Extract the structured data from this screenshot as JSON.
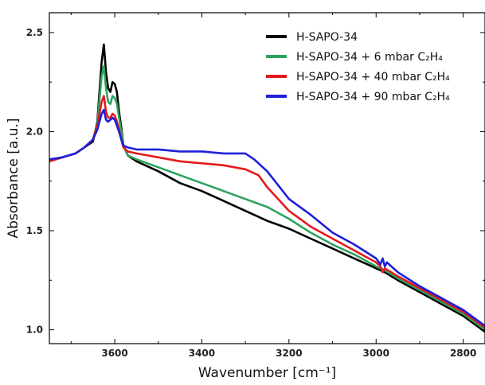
{
  "chart_data": {
    "type": "line",
    "title": "",
    "xlabel": "Wavenumber [cm⁻¹]",
    "ylabel": "Absorbance [a.u.]",
    "xlim": [
      3750,
      2750
    ],
    "ylim": [
      0.93,
      2.6
    ],
    "x_reversed": true,
    "x_ticks": [
      3600,
      3400,
      3200,
      3000,
      2800
    ],
    "x_tick_labels": [
      "3600",
      "3400",
      "3200",
      "3000",
      "2800"
    ],
    "y_ticks": [
      1.0,
      1.5,
      2.0,
      2.5
    ],
    "y_tick_labels": [
      "1.0",
      "1.5",
      "2.0",
      "2.5"
    ],
    "grid": false,
    "legend_position": "top-right",
    "series": [
      {
        "name": "H-SAPO-34",
        "color": "#000000",
        "x": [
          3750,
          3720,
          3690,
          3670,
          3650,
          3640,
          3630,
          3625,
          3620,
          3615,
          3610,
          3605,
          3600,
          3595,
          3590,
          3585,
          3580,
          3570,
          3550,
          3500,
          3450,
          3400,
          3350,
          3300,
          3250,
          3200,
          3150,
          3100,
          3050,
          3000,
          2990,
          2980,
          2950,
          2900,
          2850,
          2800,
          2750
        ],
        "y": [
          1.85,
          1.87,
          1.89,
          1.92,
          1.95,
          2.05,
          2.35,
          2.44,
          2.3,
          2.22,
          2.2,
          2.25,
          2.24,
          2.2,
          2.1,
          2.02,
          1.93,
          1.88,
          1.85,
          1.8,
          1.74,
          1.7,
          1.65,
          1.6,
          1.55,
          1.51,
          1.46,
          1.41,
          1.36,
          1.31,
          1.3,
          1.29,
          1.25,
          1.19,
          1.13,
          1.07,
          0.99
        ]
      },
      {
        "name": "H-SAPO-34 + 6 mbar C₂H₄",
        "color": "#2ca25f",
        "x": [
          3750,
          3720,
          3690,
          3670,
          3650,
          3640,
          3630,
          3625,
          3620,
          3615,
          3610,
          3605,
          3600,
          3595,
          3590,
          3585,
          3580,
          3570,
          3550,
          3500,
          3450,
          3400,
          3350,
          3300,
          3250,
          3200,
          3150,
          3100,
          3050,
          3000,
          2990,
          2980,
          2950,
          2900,
          2850,
          2800,
          2750
        ],
        "y": [
          1.85,
          1.87,
          1.89,
          1.92,
          1.96,
          2.04,
          2.28,
          2.33,
          2.22,
          2.15,
          2.14,
          2.18,
          2.17,
          2.14,
          2.07,
          2.0,
          1.93,
          1.88,
          1.86,
          1.82,
          1.78,
          1.74,
          1.7,
          1.66,
          1.62,
          1.56,
          1.49,
          1.43,
          1.38,
          1.32,
          1.31,
          1.3,
          1.26,
          1.2,
          1.14,
          1.08,
          1.0
        ]
      },
      {
        "name": "H-SAPO-34 + 40 mbar C₂H₄",
        "color": "#e31a1c",
        "x": [
          3750,
          3720,
          3690,
          3670,
          3650,
          3640,
          3630,
          3625,
          3620,
          3615,
          3610,
          3605,
          3600,
          3595,
          3590,
          3585,
          3580,
          3570,
          3550,
          3500,
          3450,
          3400,
          3350,
          3300,
          3270,
          3250,
          3200,
          3150,
          3100,
          3050,
          3000,
          2990,
          2985,
          2980,
          2950,
          2900,
          2850,
          2800,
          2750
        ],
        "y": [
          1.85,
          1.87,
          1.89,
          1.92,
          1.96,
          2.03,
          2.15,
          2.18,
          2.1,
          2.07,
          2.07,
          2.09,
          2.08,
          2.05,
          2.01,
          1.96,
          1.92,
          1.9,
          1.89,
          1.87,
          1.85,
          1.84,
          1.83,
          1.81,
          1.78,
          1.72,
          1.6,
          1.52,
          1.46,
          1.4,
          1.34,
          1.32,
          1.29,
          1.31,
          1.27,
          1.21,
          1.15,
          1.09,
          1.01
        ]
      },
      {
        "name": "H-SAPO-34 + 90 mbar C₂H₄",
        "color": "#1f1fdb",
        "x": [
          3750,
          3720,
          3690,
          3670,
          3650,
          3640,
          3630,
          3625,
          3620,
          3615,
          3610,
          3605,
          3600,
          3595,
          3590,
          3585,
          3580,
          3570,
          3550,
          3500,
          3450,
          3400,
          3350,
          3300,
          3280,
          3250,
          3200,
          3150,
          3100,
          3050,
          3000,
          2990,
          2985,
          2980,
          2975,
          2950,
          2900,
          2850,
          2800,
          2750
        ],
        "y": [
          1.86,
          1.87,
          1.89,
          1.92,
          1.96,
          2.01,
          2.09,
          2.11,
          2.06,
          2.05,
          2.06,
          2.07,
          2.06,
          2.03,
          2.0,
          1.96,
          1.93,
          1.92,
          1.91,
          1.91,
          1.9,
          1.9,
          1.89,
          1.89,
          1.86,
          1.8,
          1.66,
          1.58,
          1.49,
          1.43,
          1.36,
          1.33,
          1.36,
          1.32,
          1.34,
          1.29,
          1.22,
          1.16,
          1.1,
          1.02
        ]
      }
    ]
  }
}
